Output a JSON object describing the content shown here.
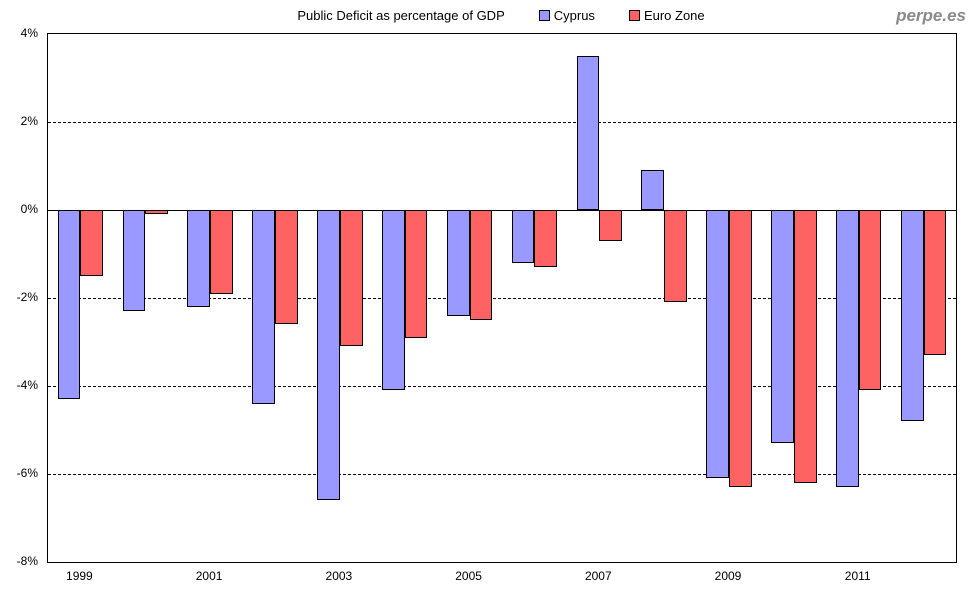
{
  "watermark": "perpe.es",
  "chart_data": {
    "type": "bar",
    "title": "Public Deficit as percentage of GDP",
    "categories": [
      "1999",
      "2000",
      "2001",
      "2002",
      "2003",
      "2004",
      "2005",
      "2006",
      "2007",
      "2008",
      "2009",
      "2010",
      "2011",
      "2012"
    ],
    "series": [
      {
        "name": "Cyprus",
        "color": "#9999FF",
        "values": [
          -4.3,
          -2.3,
          -2.2,
          -4.4,
          -6.6,
          -4.1,
          -2.4,
          -1.2,
          3.5,
          0.9,
          -6.1,
          -5.3,
          -6.3,
          -4.8
        ]
      },
      {
        "name": "Euro Zone",
        "color": "#FF6262",
        "values": [
          -1.5,
          -0.1,
          -1.9,
          -2.6,
          -3.1,
          -2.9,
          -2.5,
          -1.3,
          -0.7,
          -2.1,
          -6.3,
          -6.2,
          -4.1,
          -3.3
        ]
      }
    ],
    "xlabel": "",
    "ylabel": "",
    "ylim": [
      -8,
      4
    ],
    "y_ticks": [
      4,
      2,
      0,
      -2,
      -4,
      -6,
      -8
    ],
    "y_tick_suffix": "%",
    "dashed_gridlines": [
      2,
      -2,
      -4,
      -6
    ],
    "x_tick_labels": [
      "1999",
      "2001",
      "2003",
      "2005",
      "2007",
      "2009",
      "2011"
    ],
    "legend_position": "top",
    "grid": "horizontal-dashed",
    "bar_border_color": "#000000"
  }
}
